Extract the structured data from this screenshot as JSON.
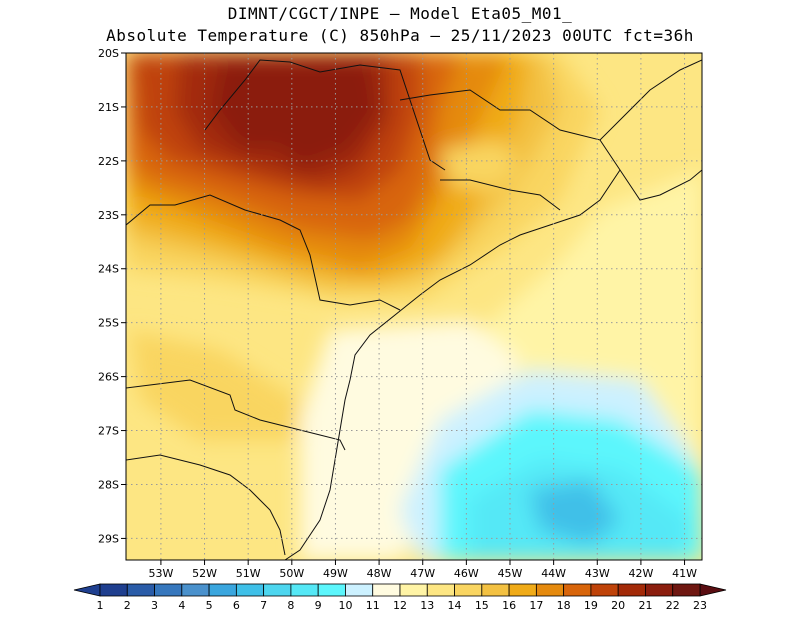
{
  "title": {
    "line1": "DIMNT/CGCT/INPE –  Model Eta05_M01_",
    "line2": "Absolute Temperature (C) 850hPa –  25/11/2023 00UTC fct=36h"
  },
  "map": {
    "lon_range": [
      -53.8,
      -40.6
    ],
    "lat_range": [
      -29.4,
      -20.0
    ],
    "lat_labels": [
      "20S",
      "21S",
      "22S",
      "23S",
      "24S",
      "25S",
      "26S",
      "27S",
      "28S",
      "29S"
    ],
    "lat_values": [
      -20,
      -21,
      -22,
      -23,
      -24,
      -25,
      -26,
      -27,
      -28,
      -29
    ],
    "lon_labels": [
      "53W",
      "52W",
      "51W",
      "50W",
      "49W",
      "48W",
      "47W",
      "46W",
      "45W",
      "44W",
      "43W",
      "42W",
      "41W"
    ],
    "lon_values": [
      -53,
      -52,
      -51,
      -50,
      -49,
      -48,
      -47,
      -46,
      -45,
      -44,
      -43,
      -42,
      -41
    ],
    "grid": true
  },
  "colorbar": {
    "labels": [
      "1",
      "2",
      "3",
      "4",
      "5",
      "6",
      "7",
      "8",
      "9",
      "10",
      "11",
      "12",
      "13",
      "14",
      "15",
      "16",
      "17",
      "18",
      "19",
      "20",
      "21",
      "22",
      "23"
    ],
    "colors": [
      "#1f3f8f",
      "#2a5ca8",
      "#3677bd",
      "#4a91cc",
      "#3aa6de",
      "#3fc0e8",
      "#4dd6ef",
      "#55e8f6",
      "#5cf6fc",
      "#ccf1ff",
      "#fffbe0",
      "#fff4a6",
      "#fde683",
      "#f9d561",
      "#f3c142",
      "#f0ab18",
      "#e58a0e",
      "#d8650b",
      "#bf4309",
      "#a32a08",
      "#8b1e0e",
      "#6f1711"
    ]
  }
}
